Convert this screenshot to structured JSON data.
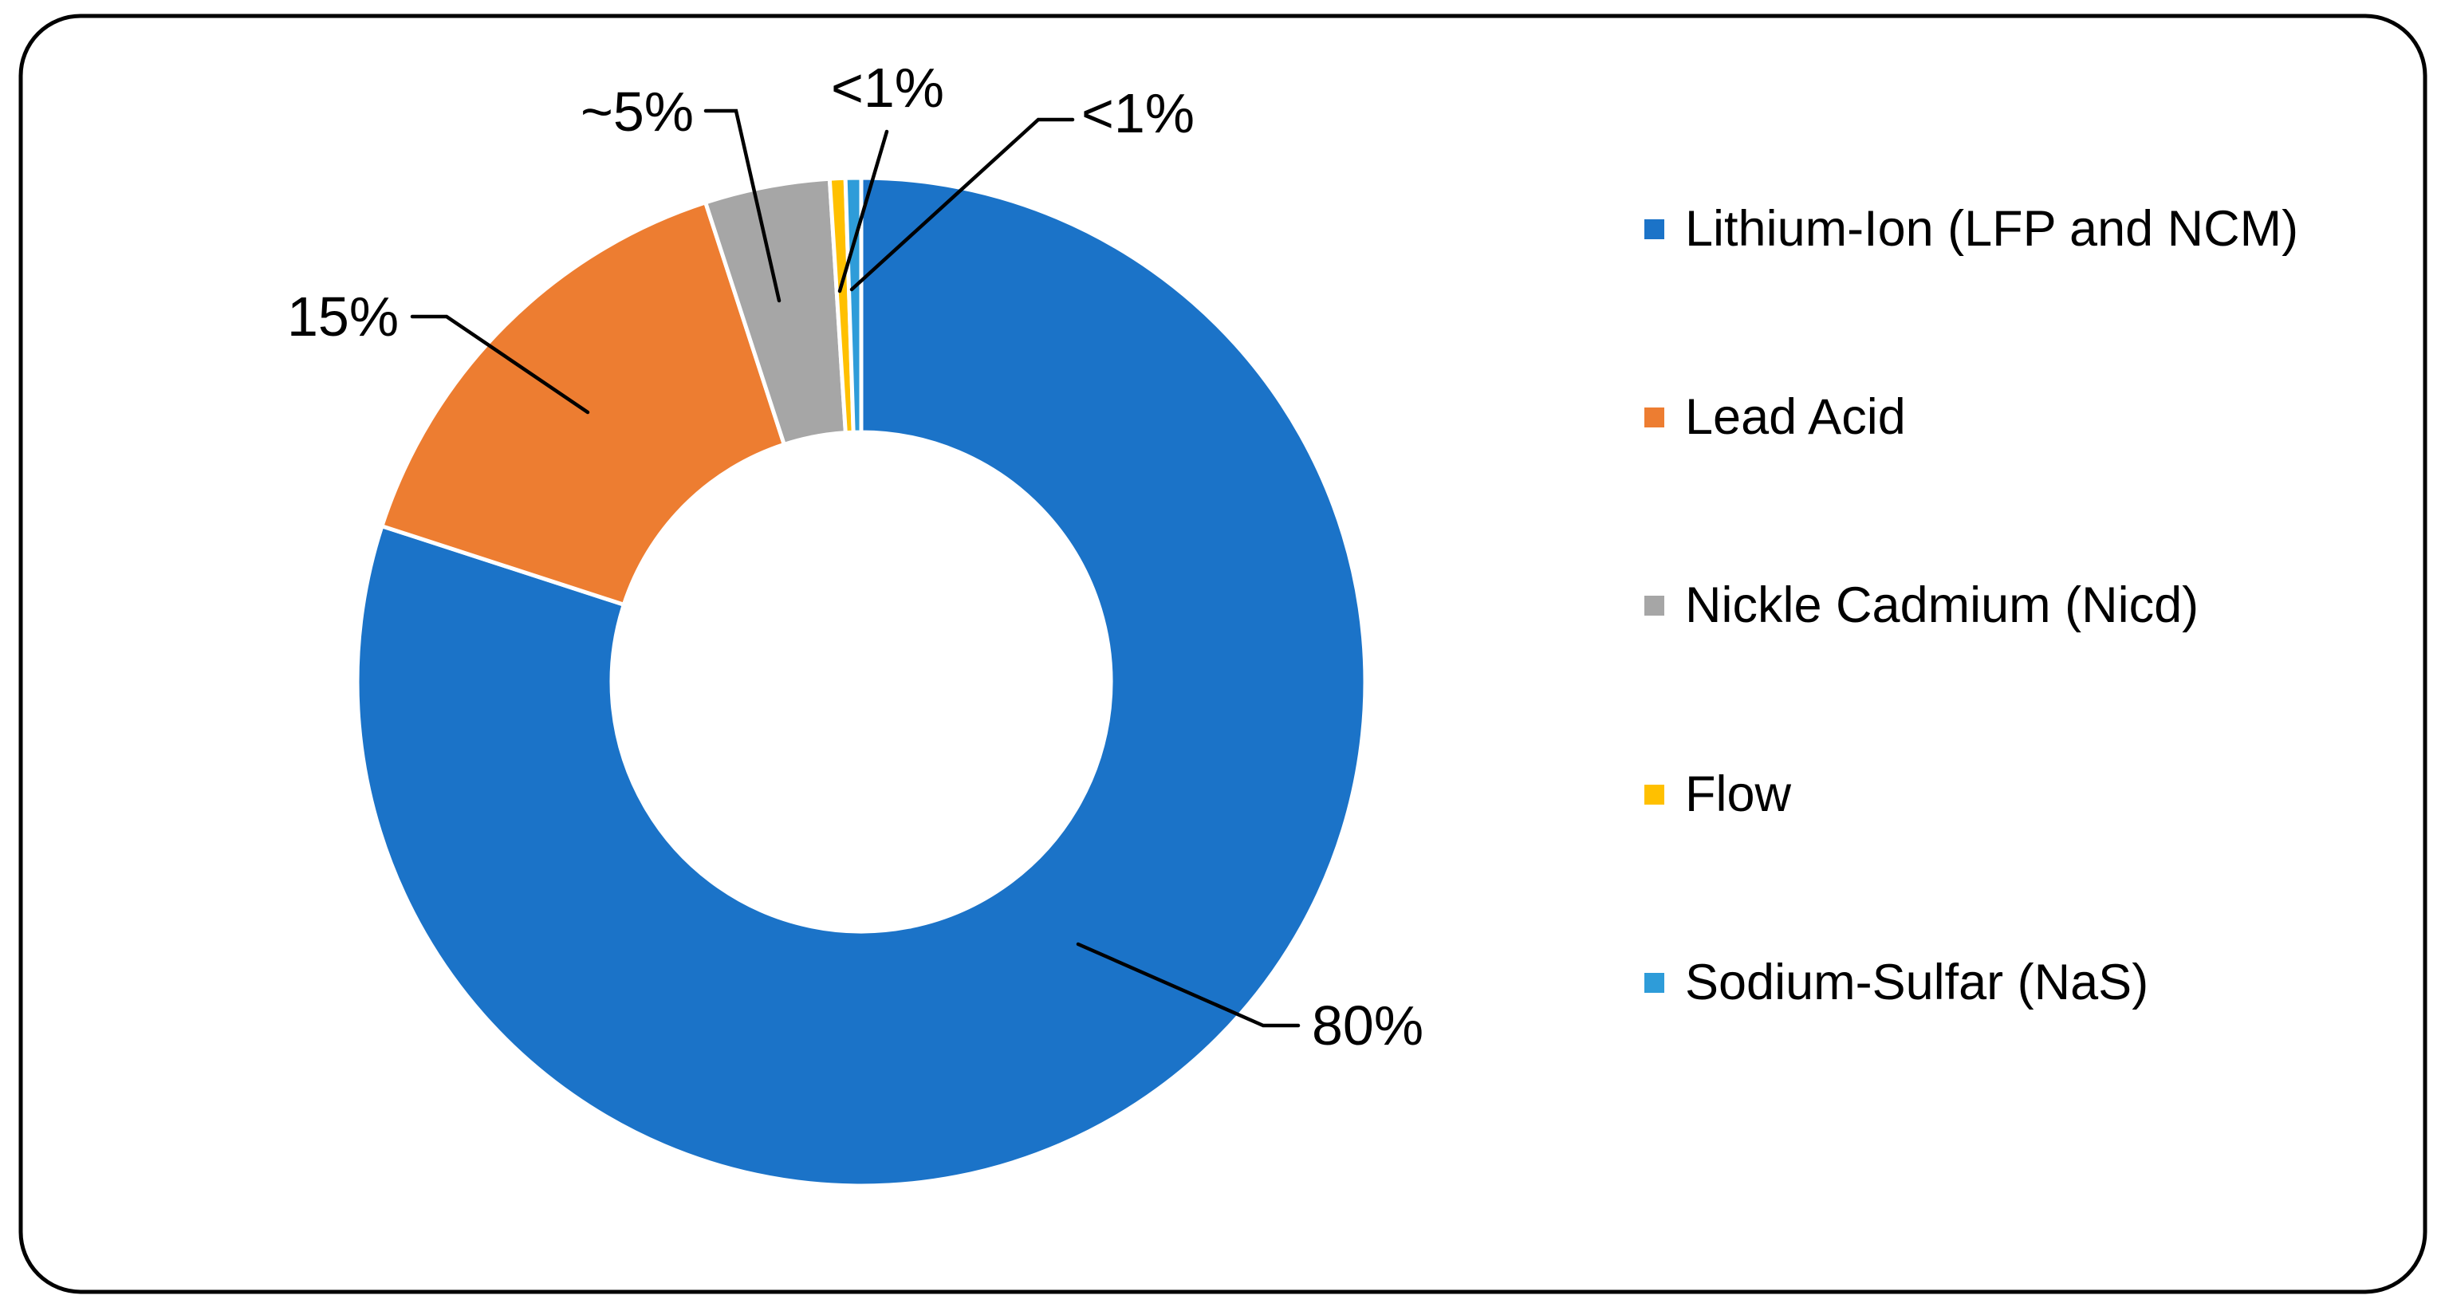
{
  "chart_data": {
    "type": "pie",
    "variant": "donut",
    "hole_ratio": 0.5,
    "start_angle_deg": 0,
    "direction": "clockwise",
    "title": "",
    "categories": [
      "Lithium-Ion (LFP and NCM)",
      "Lead Acid",
      "Nickle Cadmium (Nicd)",
      "Flow",
      "Sodium-Sulfar (NaS)"
    ],
    "values": [
      80,
      15,
      4,
      0.5,
      0.5
    ],
    "data_labels": [
      "80%",
      "15%",
      "~5%",
      "<1%",
      "<1%"
    ],
    "colors": [
      "#1B73C8",
      "#ED7D31",
      "#A6A6A6",
      "#FFC000",
      "#2E9CD9"
    ],
    "legend_position": "right",
    "legend_marker": "square",
    "separator_color": "#ffffff",
    "leader_line_color": "#000000",
    "border_color": "#000000",
    "background_color": "#ffffff"
  }
}
